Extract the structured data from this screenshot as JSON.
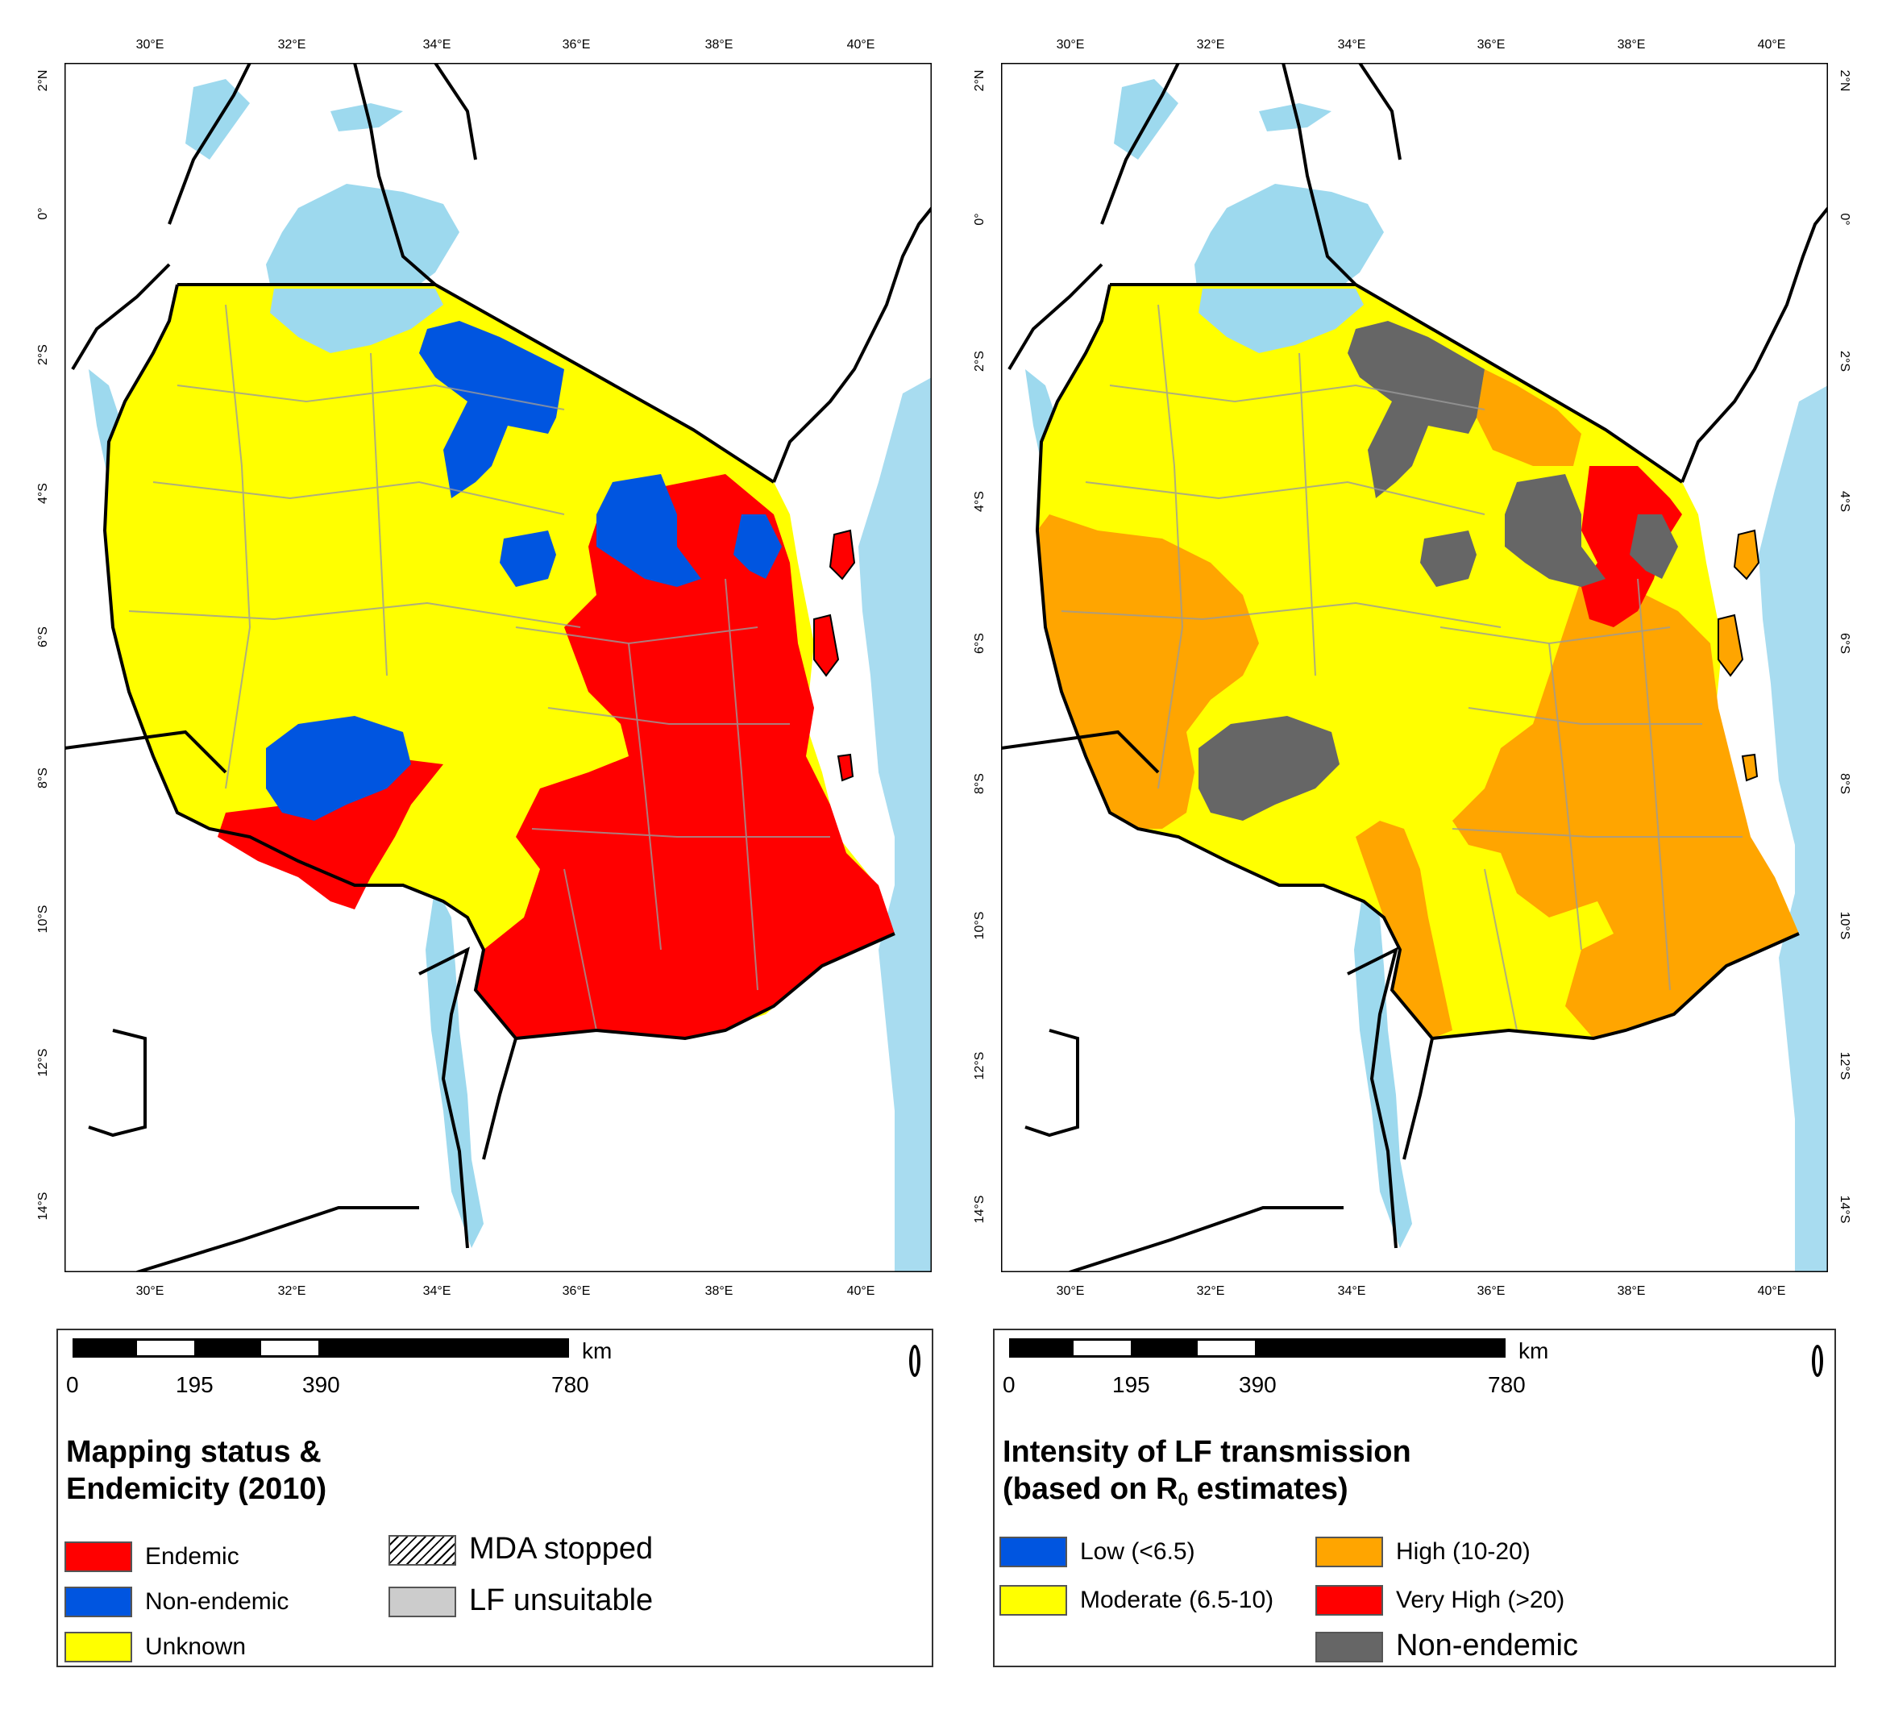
{
  "colors": {
    "endemic": "#ff0000",
    "non_endemic_blue": "#0055e0",
    "unknown": "#ffff00",
    "high": "#ffa500",
    "very_high": "#ff0000",
    "moderate": "#ffff00",
    "low": "#0055e0",
    "non_endemic_grey": "#666666",
    "lf_unsuitable": "#cccccc",
    "water": "#a8dcf0",
    "lake": "#9dd9ee",
    "boundary": "#000000",
    "district": "#9a9a9a"
  },
  "axes": {
    "lon_labels": [
      "30°E",
      "32°E",
      "34°E",
      "36°E",
      "38°E",
      "40°E"
    ],
    "lat_labels": [
      "2°N",
      "0°",
      "2°S",
      "4°S",
      "6°S",
      "8°S",
      "10°S",
      "12°S",
      "14°S"
    ]
  },
  "scalebar": {
    "unit": "km",
    "ticks": [
      "0",
      "195",
      "390",
      "780"
    ]
  },
  "map_left": {
    "legend": {
      "title_line1": "Mapping status &",
      "title_line2": "Endemicity (2010)",
      "items": [
        {
          "label": "Endemic",
          "color": "#ff0000"
        },
        {
          "label": "Non-endemic",
          "color": "#0055e0"
        },
        {
          "label": "Unknown",
          "color": "#ffff00"
        },
        {
          "label": "MDA stopped",
          "color": "hatch"
        },
        {
          "label": "LF unsuitable",
          "color": "#cccccc"
        }
      ]
    }
  },
  "map_right": {
    "legend": {
      "title_line1": "Intensity of LF transmission",
      "title_line2_prefix": "(based on R",
      "title_line2_sub": "0",
      "title_line2_suffix": " estimates)",
      "items": [
        {
          "label": "Low (<6.5)",
          "color": "#0055e0"
        },
        {
          "label": "Moderate (6.5-10)",
          "color": "#ffff00"
        },
        {
          "label": "High (10-20)",
          "color": "#ffa500"
        },
        {
          "label": "Very High (>20)",
          "color": "#ff0000"
        },
        {
          "label": "Non-endemic",
          "color": "#666666"
        }
      ]
    }
  }
}
